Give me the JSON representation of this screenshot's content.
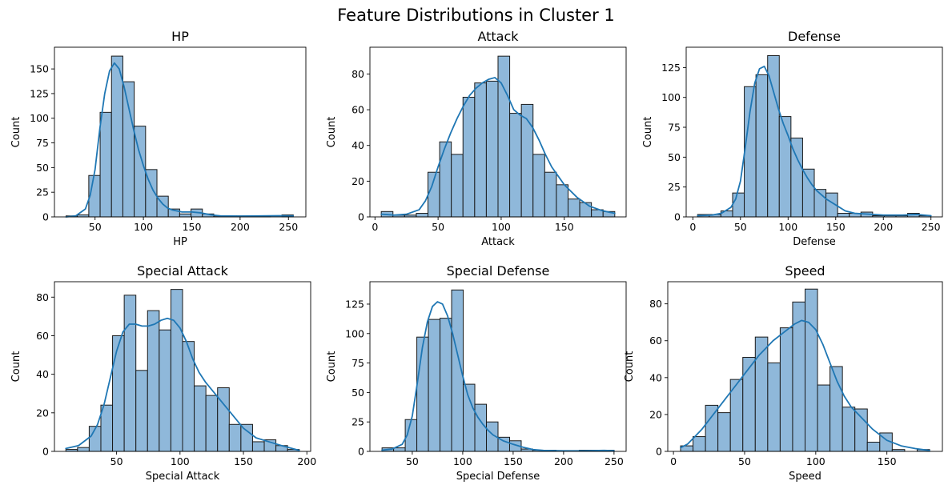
{
  "figure": {
    "suptitle": "Feature Distributions in Cluster 1",
    "bar_color": "#8fb8da",
    "bar_edge_color": "#1a1a1a",
    "kde_color": "#1f77b4"
  },
  "chart_data": [
    {
      "type": "bar",
      "title": "HP",
      "xlabel": "HP",
      "ylabel": "Count",
      "bin_edges": [
        20,
        31.75,
        43.5,
        55.25,
        67,
        78.75,
        90.5,
        102.25,
        114,
        125.75,
        137.5,
        149.25,
        161,
        172.75,
        184.5,
        196.25,
        208,
        219.75,
        231.5,
        243.25,
        255
      ],
      "counts": [
        1,
        2,
        42,
        106,
        163,
        137,
        92,
        48,
        21,
        8,
        3,
        8,
        3,
        1,
        1,
        1,
        1,
        1,
        0,
        2
      ],
      "kde": {
        "x": [
          20,
          30,
          40,
          45,
          50,
          55,
          60,
          65,
          70,
          75,
          80,
          85,
          90,
          95,
          100,
          105,
          110,
          115,
          120,
          125,
          130,
          140,
          150,
          160,
          170,
          180,
          200,
          220,
          240,
          255
        ],
        "y": [
          0,
          1,
          8,
          22,
          48,
          90,
          125,
          148,
          156,
          150,
          132,
          110,
          88,
          68,
          52,
          38,
          27,
          19,
          13,
          9,
          7,
          5,
          5,
          4,
          2,
          1,
          0.8,
          1,
          1.2,
          1
        ]
      },
      "xlim": [
        8,
        268
      ],
      "ylim": [
        0,
        172
      ],
      "xticks": [
        50,
        100,
        150,
        200,
        250
      ],
      "yticks": [
        0,
        25,
        50,
        75,
        100,
        125,
        150
      ]
    },
    {
      "type": "bar",
      "title": "Attack",
      "xlabel": "Attack",
      "ylabel": "Count",
      "bin_edges": [
        5,
        14.25,
        23.5,
        32.75,
        42,
        51.25,
        60.5,
        69.75,
        79,
        88.25,
        97.5,
        106.75,
        116,
        125.25,
        134.5,
        143.75,
        153,
        162.25,
        171.5,
        180.75,
        190
      ],
      "counts": [
        3,
        1,
        1,
        2,
        25,
        42,
        35,
        67,
        75,
        76,
        90,
        58,
        63,
        35,
        25,
        18,
        10,
        8,
        4,
        3
      ],
      "kde": {
        "x": [
          5,
          15,
          25,
          35,
          40,
          45,
          50,
          55,
          60,
          65,
          70,
          75,
          80,
          85,
          90,
          95,
          100,
          105,
          110,
          115,
          120,
          125,
          130,
          135,
          140,
          150,
          160,
          170,
          180,
          190
        ],
        "y": [
          1.5,
          1,
          1.5,
          4,
          9,
          17,
          28,
          38,
          47,
          55,
          62,
          68,
          72,
          75,
          77,
          78,
          75,
          68,
          60,
          57,
          55,
          50,
          43,
          35,
          28,
          18,
          11,
          6,
          3.5,
          2
        ]
      },
      "xlim": [
        -4,
        199
      ],
      "ylim": [
        0,
        95
      ],
      "xticks": [
        0,
        50,
        100,
        150
      ],
      "yticks": [
        0,
        20,
        40,
        60,
        80
      ]
    },
    {
      "type": "bar",
      "title": "Defense",
      "xlabel": "Defense",
      "ylabel": "Count",
      "bin_edges": [
        5,
        17.25,
        29.5,
        41.75,
        54,
        66.25,
        78.5,
        90.75,
        103,
        115.25,
        127.5,
        139.75,
        152,
        164.25,
        176.5,
        188.75,
        201,
        213.25,
        225.5,
        237.75,
        250
      ],
      "counts": [
        2,
        2,
        5,
        20,
        109,
        119,
        135,
        84,
        66,
        40,
        23,
        20,
        3,
        3,
        4,
        1,
        1,
        1,
        3,
        1
      ],
      "kde": {
        "x": [
          5,
          20,
          30,
          40,
          45,
          50,
          55,
          60,
          65,
          70,
          75,
          80,
          85,
          90,
          95,
          100,
          105,
          110,
          115,
          120,
          125,
          130,
          140,
          150,
          160,
          170,
          180,
          200,
          220,
          235,
          250
        ],
        "y": [
          1,
          1.5,
          3,
          8,
          15,
          30,
          58,
          88,
          112,
          124,
          126,
          118,
          104,
          90,
          78,
          68,
          57,
          48,
          40,
          33,
          27,
          22,
          15,
          10,
          5,
          3,
          2.5,
          1.5,
          1.5,
          2,
          1
        ]
      },
      "xlim": [
        -7,
        262
      ],
      "ylim": [
        0,
        142
      ],
      "xticks": [
        0,
        50,
        100,
        150,
        200,
        250
      ],
      "yticks": [
        0,
        25,
        50,
        75,
        100,
        125
      ]
    },
    {
      "type": "bar",
      "title": "Special Attack",
      "xlabel": "Special Attack",
      "ylabel": "Count",
      "bin_edges": [
        10,
        19.2,
        28.4,
        37.6,
        46.8,
        56,
        65.2,
        74.4,
        83.6,
        92.8,
        102,
        111.2,
        120.4,
        129.6,
        138.8,
        148,
        157.2,
        166.4,
        175.6,
        184.8,
        194
      ],
      "counts": [
        1,
        2,
        13,
        24,
        60,
        81,
        42,
        73,
        63,
        84,
        57,
        34,
        29,
        33,
        14,
        14,
        5,
        6,
        3,
        1
      ],
      "kde": {
        "x": [
          10,
          20,
          30,
          35,
          40,
          45,
          50,
          55,
          60,
          65,
          70,
          75,
          80,
          85,
          90,
          95,
          100,
          105,
          110,
          115,
          120,
          125,
          130,
          135,
          140,
          150,
          160,
          170,
          180,
          194
        ],
        "y": [
          1.5,
          3,
          8,
          14,
          24,
          38,
          52,
          62,
          66,
          66,
          65,
          65,
          66,
          68,
          69,
          68,
          64,
          57,
          48,
          41,
          36,
          32,
          28,
          24,
          20,
          12,
          7,
          5,
          3,
          0.5
        ]
      },
      "xlim": [
        1,
        203
      ],
      "ylim": [
        0,
        88
      ],
      "xticks": [
        50,
        100,
        150,
        200
      ],
      "yticks": [
        0,
        20,
        40,
        60,
        80
      ]
    },
    {
      "type": "bar",
      "title": "Special Defense",
      "xlabel": "Special Defense",
      "ylabel": "Count",
      "bin_edges": [
        20,
        31.5,
        43,
        54.5,
        66,
        77.5,
        89,
        100.5,
        112,
        123.5,
        135,
        146.5,
        158,
        169.5,
        181,
        192.5,
        204,
        215.5,
        227,
        238.5,
        250
      ],
      "counts": [
        3,
        3,
        27,
        97,
        112,
        113,
        137,
        57,
        40,
        25,
        12,
        9,
        2,
        1,
        1,
        0,
        0,
        1,
        1,
        1
      ],
      "kde": {
        "x": [
          20,
          30,
          40,
          45,
          50,
          55,
          60,
          65,
          70,
          75,
          80,
          85,
          90,
          95,
          100,
          105,
          110,
          115,
          120,
          125,
          130,
          140,
          150,
          160,
          170,
          180,
          200,
          220,
          240,
          250
        ],
        "y": [
          1,
          2,
          6,
          14,
          30,
          58,
          88,
          110,
          123,
          127,
          125,
          115,
          100,
          82,
          64,
          48,
          37,
          29,
          23,
          18,
          14,
          9,
          6,
          3.5,
          1.5,
          0.8,
          0.5,
          0.5,
          0.8,
          0.6
        ]
      },
      "xlim": [
        8,
        262
      ],
      "ylim": [
        0,
        144
      ],
      "xticks": [
        50,
        100,
        150,
        200,
        250
      ],
      "yticks": [
        0,
        25,
        50,
        75,
        100,
        125
      ]
    },
    {
      "type": "bar",
      "title": "Speed",
      "xlabel": "Speed",
      "ylabel": "Count",
      "bin_edges": [
        5,
        13.75,
        22.5,
        31.25,
        40,
        48.75,
        57.5,
        66.25,
        75,
        83.75,
        92.5,
        101.25,
        110,
        118.75,
        127.5,
        136.25,
        145,
        153.75,
        162.5,
        171.25,
        180
      ],
      "counts": [
        3,
        8,
        25,
        21,
        39,
        51,
        62,
        48,
        67,
        81,
        88,
        36,
        46,
        24,
        23,
        5,
        10,
        1,
        0,
        1
      ],
      "kde": {
        "x": [
          5,
          10,
          15,
          20,
          25,
          30,
          35,
          40,
          45,
          50,
          55,
          60,
          65,
          70,
          75,
          80,
          85,
          90,
          95,
          100,
          105,
          110,
          115,
          120,
          125,
          130,
          135,
          140,
          150,
          160,
          170,
          180
        ],
        "y": [
          2,
          4,
          8,
          12,
          17,
          22,
          27,
          32,
          37,
          42,
          47,
          52,
          56,
          60,
          63,
          66,
          69,
          71,
          70,
          66,
          58,
          48,
          38,
          30,
          24,
          20,
          16,
          12,
          6,
          3,
          1.5,
          0.5
        ]
      },
      "xlim": [
        -4,
        189
      ],
      "ylim": [
        0,
        92
      ],
      "xticks": [
        0,
        50,
        100,
        150
      ],
      "yticks": [
        0,
        20,
        40,
        60,
        80
      ]
    }
  ]
}
